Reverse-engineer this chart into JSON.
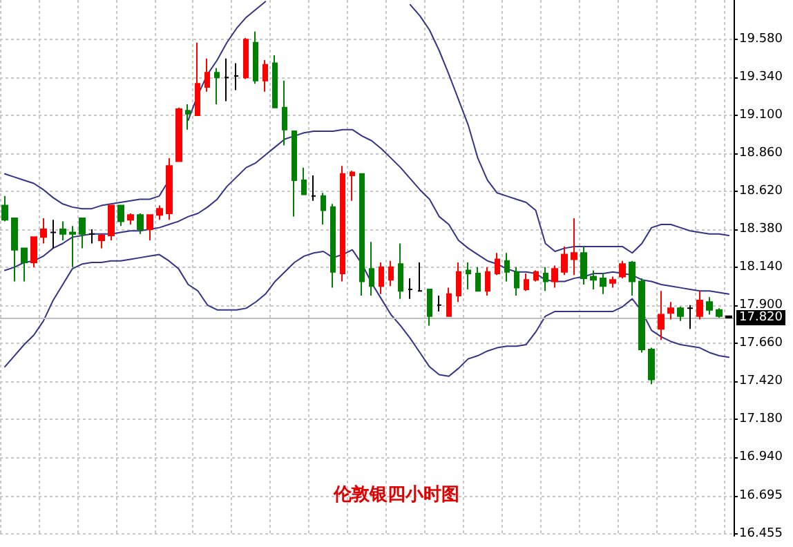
{
  "chart_data": {
    "type": "candlestick",
    "title": "伦敦银四小时图",
    "categories": [
      null,
      null,
      null,
      null,
      null,
      null,
      null,
      null,
      null,
      null,
      null,
      null,
      null,
      null,
      null,
      null,
      null,
      null,
      null,
      null,
      null,
      null,
      null,
      null,
      null,
      null,
      null,
      null,
      null,
      null,
      null,
      null,
      null,
      null,
      null,
      null,
      null,
      null,
      null,
      null,
      null,
      null,
      null,
      null,
      null,
      null,
      null,
      null,
      null,
      null,
      null,
      null,
      null,
      null,
      null,
      null,
      null,
      null,
      null,
      null,
      null,
      null,
      null,
      null,
      null,
      null,
      null,
      null,
      null,
      null,
      null,
      null,
      null,
      null,
      null,
      null
    ],
    "ohlc": [
      [
        18.53,
        18.59,
        18.43,
        18.44
      ],
      [
        18.45,
        18.45,
        18.05,
        18.25
      ],
      [
        18.26,
        18.26,
        18.05,
        18.17
      ],
      [
        18.17,
        18.33,
        18.14,
        18.33
      ],
      [
        18.33,
        18.45,
        18.29,
        18.38
      ],
      [
        18.36,
        18.44,
        18.26,
        18.36
      ],
      [
        18.38,
        18.43,
        18.31,
        18.35
      ],
      [
        18.36,
        18.4,
        18.14,
        18.35
      ],
      [
        18.45,
        18.45,
        18.26,
        18.35
      ],
      [
        18.35,
        18.38,
        18.29,
        18.35
      ],
      [
        18.31,
        18.35,
        18.26,
        18.34
      ],
      [
        18.34,
        18.53,
        18.31,
        18.53
      ],
      [
        18.53,
        18.53,
        18.4,
        18.43
      ],
      [
        18.44,
        18.48,
        18.41,
        18.47
      ],
      [
        18.47,
        18.48,
        18.35,
        18.38
      ],
      [
        18.38,
        18.47,
        18.31,
        18.47
      ],
      [
        18.47,
        18.53,
        18.44,
        18.51
      ],
      [
        18.48,
        18.83,
        18.44,
        18.78
      ],
      [
        18.81,
        19.15,
        18.81,
        19.14
      ],
      [
        19.13,
        19.17,
        19.01,
        19.11
      ],
      [
        19.1,
        19.56,
        19.1,
        19.3
      ],
      [
        19.28,
        19.46,
        19.25,
        19.37
      ],
      [
        19.37,
        19.4,
        19.17,
        19.34
      ],
      [
        19.34,
        19.46,
        19.19,
        19.34
      ],
      [
        19.35,
        19.43,
        19.26,
        19.35
      ],
      [
        19.34,
        19.59,
        19.33,
        19.58
      ],
      [
        19.56,
        19.63,
        19.3,
        19.32
      ],
      [
        19.32,
        19.45,
        19.25,
        19.42
      ],
      [
        19.43,
        19.48,
        19.15,
        19.15
      ],
      [
        19.15,
        19.32,
        18.91,
        19.01
      ],
      [
        19.0,
        19.0,
        18.46,
        18.69
      ],
      [
        18.69,
        18.77,
        18.6,
        18.6
      ],
      [
        18.59,
        18.72,
        18.56,
        18.59
      ],
      [
        18.59,
        18.61,
        18.41,
        18.5
      ],
      [
        18.52,
        18.54,
        18.01,
        18.11
      ],
      [
        18.1,
        18.78,
        18.05,
        18.73
      ],
      [
        18.72,
        18.75,
        18.56,
        18.74
      ],
      [
        18.73,
        18.73,
        17.96,
        18.05
      ],
      [
        18.13,
        18.3,
        17.96,
        18.02
      ],
      [
        18.02,
        18.17,
        17.97,
        18.14
      ],
      [
        18.06,
        18.18,
        18.02,
        18.14
      ],
      [
        18.16,
        18.29,
        17.94,
        17.99
      ],
      [
        18.0,
        18.07,
        17.94,
        18.0
      ],
      [
        17.99,
        18.17,
        17.99,
        17.99
      ],
      [
        18.0,
        18.0,
        17.77,
        17.83
      ],
      [
        17.9,
        17.96,
        17.86,
        17.9
      ],
      [
        17.83,
        18.01,
        17.83,
        17.97
      ],
      [
        17.96,
        18.17,
        17.92,
        18.11
      ],
      [
        18.12,
        18.17,
        18.0,
        18.1
      ],
      [
        18.1,
        18.14,
        17.99,
        17.99
      ],
      [
        17.99,
        18.14,
        17.96,
        18.11
      ],
      [
        18.1,
        18.23,
        18.09,
        18.19
      ],
      [
        18.18,
        18.23,
        18.05,
        18.11
      ],
      [
        18.11,
        18.14,
        17.96,
        18.01
      ],
      [
        18.0,
        18.1,
        17.99,
        18.06
      ],
      [
        18.06,
        18.12,
        18.05,
        18.11
      ],
      [
        18.1,
        18.14,
        17.99,
        18.05
      ],
      [
        18.05,
        18.15,
        18.01,
        18.13
      ],
      [
        18.11,
        18.27,
        18.09,
        18.22
      ],
      [
        18.19,
        18.45,
        18.09,
        18.23
      ],
      [
        18.23,
        18.27,
        18.03,
        18.07
      ],
      [
        18.08,
        18.12,
        18.0,
        18.06
      ],
      [
        18.07,
        18.1,
        17.97,
        18.02
      ],
      [
        18.04,
        18.08,
        18.01,
        18.06
      ],
      [
        18.08,
        18.18,
        18.07,
        18.16
      ],
      [
        18.17,
        18.18,
        17.96,
        18.05
      ],
      [
        18.05,
        18.07,
        17.6,
        17.62
      ],
      [
        17.62,
        17.63,
        17.4,
        17.43
      ],
      [
        17.75,
        17.99,
        17.68,
        17.84
      ],
      [
        17.85,
        17.92,
        17.81,
        17.88
      ],
      [
        17.88,
        17.89,
        17.8,
        17.83
      ],
      [
        17.88,
        17.9,
        17.75,
        17.88
      ],
      [
        17.83,
        17.99,
        17.81,
        17.93
      ],
      [
        17.92,
        17.95,
        17.84,
        17.87
      ],
      [
        17.87,
        17.88,
        17.82,
        17.83
      ],
      [
        17.83,
        17.83,
        17.82,
        17.82
      ]
    ],
    "colors": [
      "#008000",
      "#008000",
      "#008000",
      "#ff0000",
      "#ff0000",
      "#000000",
      "#008000",
      "#008000",
      "#008000",
      "#000000",
      "#ff0000",
      "#ff0000",
      "#008000",
      "#ff0000",
      "#008000",
      "#ff0000",
      "#ff0000",
      "#ff0000",
      "#ff0000",
      "#008000",
      "#ff0000",
      "#ff0000",
      "#008000",
      "#000000",
      "#000000",
      "#ff0000",
      "#008000",
      "#ff0000",
      "#008000",
      "#008000",
      "#008000",
      "#008000",
      "#000000",
      "#008000",
      "#008000",
      "#ff0000",
      "#ff0000",
      "#008000",
      "#008000",
      "#ff0000",
      "#ff0000",
      "#008000",
      "#000000",
      "#000000",
      "#008000",
      "#000000",
      "#ff0000",
      "#ff0000",
      "#008000",
      "#008000",
      "#ff0000",
      "#ff0000",
      "#008000",
      "#008000",
      "#ff0000",
      "#ff0000",
      "#008000",
      "#ff0000",
      "#ff0000",
      "#ff0000",
      "#008000",
      "#008000",
      "#008000",
      "#ff0000",
      "#ff0000",
      "#008000",
      "#008000",
      "#008000",
      "#ff0000",
      "#ff0000",
      "#008000",
      "#000000",
      "#ff0000",
      "#008000",
      "#008000",
      "#000000"
    ],
    "series": [
      {
        "type": "line",
        "color": "#333388",
        "values": [
          18.73,
          18.71,
          18.69,
          18.67,
          18.63,
          18.58,
          18.54,
          18.52,
          18.51,
          18.51,
          18.53,
          18.54,
          18.55,
          18.56,
          18.57,
          18.57,
          18.59,
          18.69,
          null,
          19.07,
          19.23,
          19.36,
          19.45,
          19.56,
          19.65,
          19.72,
          19.77,
          19.82,
          null,
          null,
          null,
          null,
          null,
          null,
          null,
          null,
          null,
          null,
          null,
          null,
          null,
          null,
          19.8,
          19.73,
          19.64,
          19.51,
          19.36,
          19.2,
          19.04,
          18.83,
          18.69,
          18.61,
          18.59,
          18.57,
          18.55,
          18.5,
          18.29,
          18.24,
          18.26,
          18.27,
          18.27,
          18.27,
          18.27,
          18.27,
          18.27,
          18.23,
          18.29,
          18.39,
          18.41,
          18.41,
          18.39,
          18.37,
          18.36,
          18.35,
          18.35,
          18.34
        ]
      },
      {
        "type": "line",
        "color": "#333388",
        "values": [
          18.12,
          18.14,
          18.17,
          18.18,
          18.21,
          18.26,
          18.29,
          18.33,
          18.34,
          18.35,
          18.35,
          18.35,
          18.36,
          18.37,
          18.37,
          18.38,
          18.39,
          18.41,
          18.43,
          18.46,
          18.48,
          18.52,
          18.57,
          18.65,
          18.71,
          18.77,
          18.8,
          18.85,
          18.9,
          18.95,
          18.97,
          18.99,
          19.0,
          19.0,
          19.0,
          19.01,
          19.01,
          18.97,
          18.94,
          18.89,
          18.83,
          18.77,
          18.7,
          18.63,
          18.57,
          18.46,
          18.41,
          18.31,
          18.26,
          18.22,
          18.18,
          18.16,
          18.13,
          18.11,
          18.11,
          18.1,
          18.06,
          18.05,
          18.05,
          18.07,
          18.08,
          18.1,
          18.1,
          18.11,
          18.1,
          18.09,
          18.06,
          18.05,
          18.03,
          18.02,
          18.01,
          18.0,
          17.99,
          17.99,
          17.98,
          17.97
        ]
      },
      {
        "type": "line",
        "color": "#333388",
        "values": [
          17.51,
          17.58,
          17.65,
          17.71,
          17.8,
          17.93,
          18.03,
          18.13,
          18.16,
          18.17,
          18.17,
          18.18,
          18.18,
          18.19,
          18.2,
          18.21,
          18.22,
          18.18,
          18.13,
          18.03,
          17.99,
          17.9,
          17.87,
          17.87,
          17.87,
          17.88,
          17.92,
          17.97,
          18.05,
          18.11,
          18.17,
          18.21,
          18.23,
          18.24,
          18.2,
          18.22,
          18.25,
          18.16,
          18.04,
          17.94,
          17.84,
          17.77,
          17.69,
          17.6,
          17.51,
          17.46,
          17.45,
          17.5,
          17.56,
          17.58,
          17.61,
          17.63,
          17.64,
          17.64,
          17.65,
          17.73,
          17.83,
          17.86,
          17.86,
          17.86,
          17.86,
          17.86,
          17.86,
          17.86,
          17.89,
          17.94,
          17.86,
          17.74,
          17.7,
          17.67,
          17.65,
          17.64,
          17.63,
          17.6,
          17.58,
          17.57
        ]
      }
    ],
    "ylim": [
      16.44,
      19.83
    ],
    "yticks": [
      {
        "value": 19.58,
        "label": "19.580"
      },
      {
        "value": 19.34,
        "label": "19.340"
      },
      {
        "value": 19.1,
        "label": "19.100"
      },
      {
        "value": 18.86,
        "label": "18.860"
      },
      {
        "value": 18.62,
        "label": "18.620"
      },
      {
        "value": 18.38,
        "label": "18.380"
      },
      {
        "value": 18.14,
        "label": "18.140"
      },
      {
        "value": 17.9,
        "label": "17.900"
      },
      {
        "value": 17.66,
        "label": "17.660"
      },
      {
        "value": 17.42,
        "label": "17.420"
      },
      {
        "value": 17.18,
        "label": "17.180"
      },
      {
        "value": 16.94,
        "label": "16.940"
      },
      {
        "value": 16.695,
        "label": "16.695"
      },
      {
        "value": 16.455,
        "label": "16.455"
      }
    ],
    "ref_lines": [
      {
        "axis": "y",
        "value": 17.82,
        "label": "17.820",
        "color": "#c0c0c0"
      }
    ],
    "grid": true,
    "tick_labels": "y"
  }
}
